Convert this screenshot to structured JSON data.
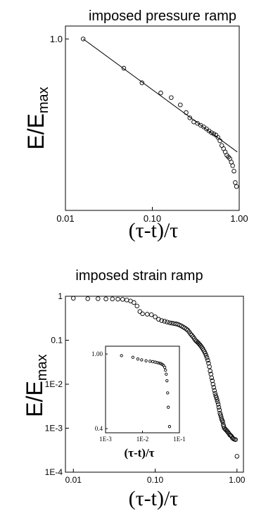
{
  "chart_data": [
    {
      "type": "scatter",
      "title": "imposed pressure ramp",
      "xlabel": "(τ-t)/τ",
      "ylabel": "E/E",
      "ylabel_sub": "max",
      "xscale": "log",
      "yscale": "log",
      "xlim": [
        0.01,
        1.0
      ],
      "ylim": [
        0.36,
        1.08
      ],
      "xticks": [
        0.01,
        0.1,
        1.0
      ],
      "xtick_labels": [
        "0.01",
        "0.10",
        "1.00"
      ],
      "yticks": [
        1.0
      ],
      "ytick_labels": [
        "1.0"
      ],
      "grid": false,
      "series": [
        {
          "marker": "open-circle",
          "x": [
            0.016,
            0.047,
            0.076,
            0.125,
            0.165,
            0.21,
            0.245,
            0.27,
            0.3,
            0.33,
            0.36,
            0.39,
            0.42,
            0.45,
            0.48,
            0.51,
            0.54,
            0.57,
            0.6,
            0.63,
            0.66,
            0.69,
            0.72,
            0.75,
            0.78,
            0.81,
            0.84,
            0.87,
            0.9,
            0.93
          ],
          "y": [
            1.0,
            0.84,
            0.77,
            0.725,
            0.705,
            0.675,
            0.645,
            0.625,
            0.61,
            0.605,
            0.598,
            0.592,
            0.585,
            0.578,
            0.572,
            0.568,
            0.564,
            0.556,
            0.545,
            0.53,
            0.52,
            0.51,
            0.5,
            0.495,
            0.49,
            0.48,
            0.47,
            0.455,
            0.425,
            0.415
          ]
        },
        {
          "style": "line",
          "x": [
            0.016,
            0.95
          ],
          "y": [
            1.0,
            0.51
          ]
        }
      ]
    },
    {
      "type": "scatter",
      "title": "imposed strain  ramp",
      "xlabel": "(τ-t)/τ",
      "ylabel": "E/E",
      "ylabel_sub": "max",
      "xscale": "log",
      "yscale": "log",
      "xlim": [
        0.008,
        1.2
      ],
      "ylim": [
        0.0001,
        1.0
      ],
      "xticks": [
        0.01,
        0.1,
        1.0
      ],
      "xtick_labels": [
        "0.01",
        "0.10",
        "1.00"
      ],
      "yticks": [
        1,
        0.1,
        0.01,
        0.001,
        0.0001
      ],
      "ytick_labels": [
        "1",
        "0.1",
        "1E-2",
        "1E-3",
        "1E-4"
      ],
      "grid": false,
      "series": [
        {
          "marker": "open-circle",
          "x": [
            0.01,
            0.015,
            0.02,
            0.025,
            0.03,
            0.035,
            0.04,
            0.045,
            0.05,
            0.055,
            0.06,
            0.065,
            0.07,
            0.08,
            0.09,
            0.1,
            0.11,
            0.12,
            0.13,
            0.14,
            0.15,
            0.16,
            0.17,
            0.18,
            0.19,
            0.2,
            0.21,
            0.22,
            0.23,
            0.24,
            0.25,
            0.26,
            0.27,
            0.28,
            0.29,
            0.3,
            0.31,
            0.32,
            0.33,
            0.34,
            0.35,
            0.36,
            0.37,
            0.38,
            0.39,
            0.4,
            0.41,
            0.42,
            0.43,
            0.44,
            0.45,
            0.46,
            0.47,
            0.48,
            0.49,
            0.5,
            0.51,
            0.52,
            0.53,
            0.54,
            0.55,
            0.56,
            0.57,
            0.58,
            0.59,
            0.6,
            0.61,
            0.62,
            0.63,
            0.64,
            0.65,
            0.66,
            0.67,
            0.68,
            0.69,
            0.7,
            0.72,
            0.74,
            0.76,
            0.78,
            0.8,
            0.82,
            0.84,
            0.86,
            0.88,
            0.9,
            0.93,
            0.96,
            1.0
          ],
          "y": [
            0.9,
            0.88,
            0.88,
            0.87,
            0.87,
            0.86,
            0.85,
            0.82,
            0.78,
            0.72,
            0.6,
            0.45,
            0.4,
            0.39,
            0.38,
            0.34,
            0.3,
            0.28,
            0.27,
            0.26,
            0.25,
            0.245,
            0.24,
            0.235,
            0.23,
            0.22,
            0.21,
            0.2,
            0.19,
            0.18,
            0.17,
            0.155,
            0.14,
            0.13,
            0.12,
            0.11,
            0.1,
            0.095,
            0.09,
            0.085,
            0.08,
            0.075,
            0.07,
            0.065,
            0.06,
            0.055,
            0.05,
            0.045,
            0.04,
            0.035,
            0.03,
            0.025,
            0.02,
            0.017,
            0.014,
            0.012,
            0.01,
            0.0085,
            0.0072,
            0.0062,
            0.0055,
            0.005,
            0.0045,
            0.004,
            0.0035,
            0.003,
            0.0026,
            0.0022,
            0.002,
            0.0018,
            0.0016,
            0.0015,
            0.0014,
            0.0012,
            0.0011,
            0.001,
            0.00095,
            0.0009,
            0.00085,
            0.0008,
            0.00075,
            0.0007,
            0.00068,
            0.00065,
            0.0006,
            0.00058,
            0.00056,
            0.00055,
            0.00023
          ]
        }
      ],
      "inset": {
        "type": "scatter",
        "xlabel": "(τ-t)/τ",
        "xscale": "log",
        "yscale": "log",
        "xlim": [
          0.001,
          0.1
        ],
        "ylim": [
          0.38,
          1.1
        ],
        "xticks": [
          0.001,
          0.01,
          0.1
        ],
        "xtick_labels": [
          "1E-3",
          "1E-2",
          "1E-1"
        ],
        "yticks": [
          1.0,
          0.4
        ],
        "ytick_labels": [
          "1.00",
          "0.4"
        ],
        "x": [
          0.0027,
          0.0055,
          0.0075,
          0.0095,
          0.0125,
          0.016,
          0.019,
          0.022,
          0.025,
          0.028,
          0.031,
          0.034,
          0.037,
          0.04,
          0.042,
          0.044,
          0.046,
          0.048,
          0.05,
          0.054
        ],
        "y": [
          0.98,
          0.96,
          0.94,
          0.93,
          0.92,
          0.915,
          0.91,
          0.905,
          0.9,
          0.895,
          0.89,
          0.88,
          0.87,
          0.85,
          0.82,
          0.78,
          0.72,
          0.62,
          0.52,
          0.41
        ]
      }
    }
  ]
}
